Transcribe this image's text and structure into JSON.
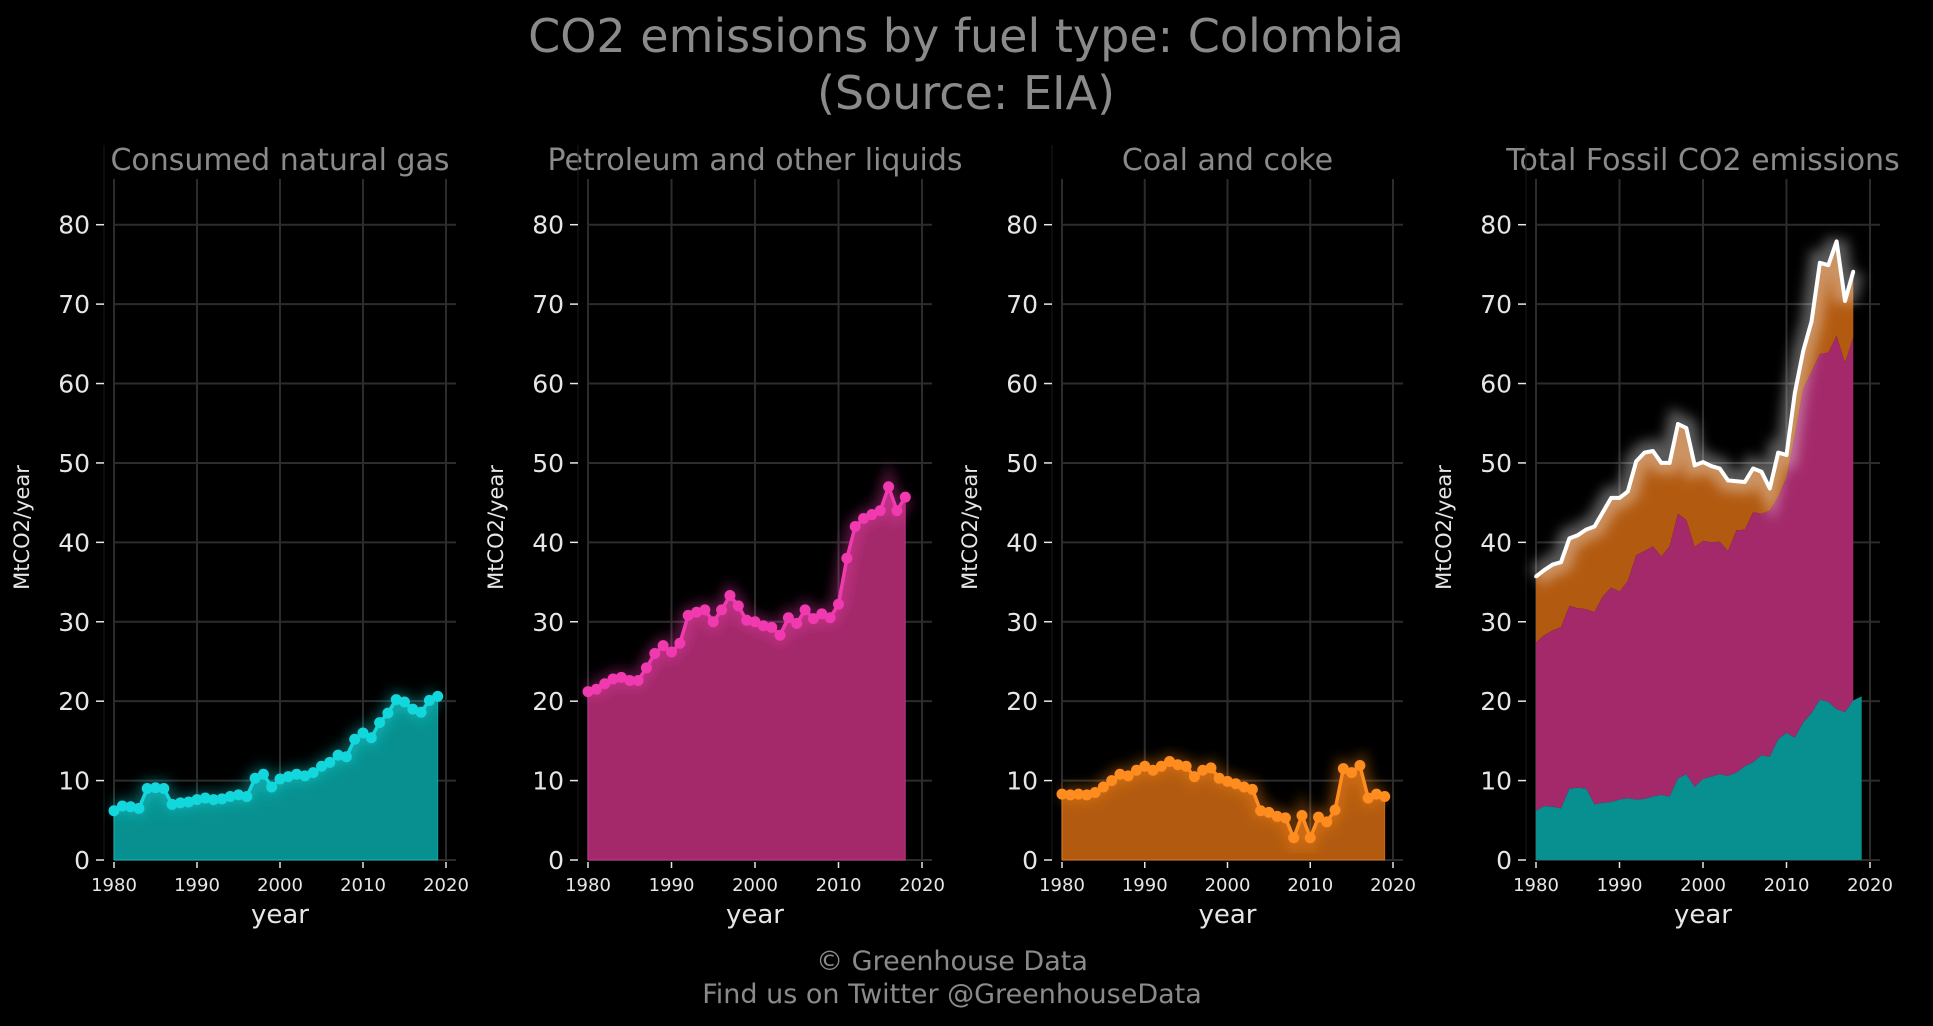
{
  "title_line1": "CO2 emissions by fuel type: Colombia",
  "title_line2": "(Source: EIA)",
  "footer_line1": "© Greenhouse Data",
  "footer_line2": "Find us on Twitter @GreenhouseData",
  "colors": {
    "background": "#000000",
    "gas": "#12d7dc",
    "gas_fill": "#07908f",
    "petroleum": "#f13ab0",
    "petroleum_fill": "#a3296a",
    "coal": "#ff8c1e",
    "coal_fill": "#b25a10",
    "total_line": "#ffffff",
    "grid": "#2c2c2c",
    "text": "#e6e6e6",
    "title_text": "#8a8a8a"
  },
  "chart_data": [
    {
      "type": "area",
      "title": "Consumed natural gas",
      "xlabel": "year",
      "ylabel": "MtCO2/year",
      "xlim": [
        1980,
        2020
      ],
      "ylim": [
        0,
        85
      ],
      "xticks": [
        1980,
        1990,
        2000,
        2010,
        2020
      ],
      "yticks": [
        0,
        10,
        20,
        30,
        40,
        50,
        60,
        70,
        80
      ],
      "grid": true,
      "color_key": "gas",
      "x": [
        1980,
        1981,
        1982,
        1983,
        1984,
        1985,
        1986,
        1987,
        1988,
        1989,
        1990,
        1991,
        1992,
        1993,
        1994,
        1995,
        1996,
        1997,
        1998,
        1999,
        2000,
        2001,
        2002,
        2003,
        2004,
        2005,
        2006,
        2007,
        2008,
        2009,
        2010,
        2011,
        2012,
        2013,
        2014,
        2015,
        2016,
        2017,
        2018,
        2019
      ],
      "values": [
        6.2,
        6.8,
        6.7,
        6.5,
        9.0,
        9.1,
        9.0,
        7.0,
        7.2,
        7.3,
        7.6,
        7.8,
        7.6,
        7.7,
        8.0,
        8.2,
        8.0,
        10.3,
        10.8,
        9.2,
        10.2,
        10.5,
        10.8,
        10.6,
        11.0,
        11.8,
        12.3,
        13.2,
        13.0,
        15.2,
        16.0,
        15.4,
        17.3,
        18.5,
        20.2,
        19.9,
        19.0,
        18.6,
        20.1,
        20.6
      ]
    },
    {
      "type": "area",
      "title": "Petroleum and other liquids",
      "xlabel": "year",
      "ylabel": "MtCO2/year",
      "xlim": [
        1980,
        2020
      ],
      "ylim": [
        0,
        85
      ],
      "xticks": [
        1980,
        1990,
        2000,
        2010,
        2020
      ],
      "yticks": [
        0,
        10,
        20,
        30,
        40,
        50,
        60,
        70,
        80
      ],
      "grid": true,
      "color_key": "petroleum",
      "x": [
        1980,
        1981,
        1982,
        1983,
        1984,
        1985,
        1986,
        1987,
        1988,
        1989,
        1990,
        1991,
        1992,
        1993,
        1994,
        1995,
        1996,
        1997,
        1998,
        1999,
        2000,
        2001,
        2002,
        2003,
        2004,
        2005,
        2006,
        2007,
        2008,
        2009,
        2010,
        2011,
        2012,
        2013,
        2014,
        2015,
        2016,
        2017,
        2018
      ],
      "values": [
        21.2,
        21.5,
        22.2,
        22.8,
        23.0,
        22.6,
        22.6,
        24.2,
        26.0,
        27.0,
        26.2,
        27.3,
        30.8,
        31.2,
        31.5,
        30.0,
        31.5,
        33.3,
        32.0,
        30.2,
        30.0,
        29.5,
        29.3,
        28.3,
        30.5,
        29.8,
        31.5,
        30.4,
        31.0,
        30.5,
        32.2,
        38.0,
        42.0,
        43.0,
        43.5,
        44.0,
        47.0,
        44.0,
        45.7
      ]
    },
    {
      "type": "area",
      "title": "Coal and coke",
      "xlabel": "year",
      "ylabel": "MtCO2/year",
      "xlim": [
        1980,
        2020
      ],
      "ylim": [
        0,
        85
      ],
      "xticks": [
        1980,
        1990,
        2000,
        2010,
        2020
      ],
      "yticks": [
        0,
        10,
        20,
        30,
        40,
        50,
        60,
        70,
        80
      ],
      "grid": true,
      "color_key": "coal",
      "x": [
        1980,
        1981,
        1982,
        1983,
        1984,
        1985,
        1986,
        1987,
        1988,
        1989,
        1990,
        1991,
        1992,
        1993,
        1994,
        1995,
        1996,
        1997,
        1998,
        1999,
        2000,
        2001,
        2002,
        2003,
        2004,
        2005,
        2006,
        2007,
        2008,
        2009,
        2010,
        2011,
        2012,
        2013,
        2014,
        2015,
        2016,
        2017,
        2018,
        2019
      ],
      "values": [
        8.3,
        8.2,
        8.3,
        8.2,
        8.5,
        9.2,
        10.0,
        10.8,
        10.6,
        11.3,
        11.8,
        11.3,
        11.8,
        12.4,
        12.0,
        11.8,
        10.5,
        11.3,
        11.6,
        10.3,
        9.9,
        9.6,
        9.2,
        8.9,
        6.2,
        6.0,
        5.5,
        5.3,
        2.8,
        5.6,
        2.8,
        5.4,
        4.8,
        6.3,
        11.5,
        11.0,
        11.9,
        7.8,
        8.3,
        8.0
      ]
    },
    {
      "type": "area",
      "title": "Total Fossil CO2 emissions",
      "xlabel": "year",
      "ylabel": "MtCO2/year",
      "xlim": [
        1980,
        2020
      ],
      "ylim": [
        0,
        85
      ],
      "xticks": [
        1980,
        1990,
        2000,
        2010,
        2020
      ],
      "yticks": [
        0,
        10,
        20,
        30,
        40,
        50,
        60,
        70,
        80
      ],
      "grid": true,
      "stacked": true,
      "stack_order": [
        "gas",
        "petroleum",
        "coal"
      ],
      "x": [
        1980,
        1981,
        1982,
        1983,
        1984,
        1985,
        1986,
        1987,
        1988,
        1989,
        1990,
        1991,
        1992,
        1993,
        1994,
        1995,
        1996,
        1997,
        1998,
        1999,
        2000,
        2001,
        2002,
        2003,
        2004,
        2005,
        2006,
        2007,
        2008,
        2009,
        2010,
        2011,
        2012,
        2013,
        2014,
        2015,
        2016,
        2017,
        2018
      ],
      "total": [
        35.7,
        36.5,
        37.2,
        37.5,
        40.5,
        40.9,
        41.6,
        42.0,
        43.8,
        45.6,
        45.6,
        46.4,
        50.2,
        51.3,
        51.5,
        50.0,
        50.0,
        54.9,
        54.4,
        49.7,
        50.1,
        49.6,
        49.3,
        47.8,
        47.7,
        47.6,
        49.3,
        48.9,
        46.8,
        51.3,
        51.0,
        58.8,
        64.1,
        67.8,
        75.2,
        74.9,
        77.9,
        70.4,
        74.1
      ]
    }
  ]
}
